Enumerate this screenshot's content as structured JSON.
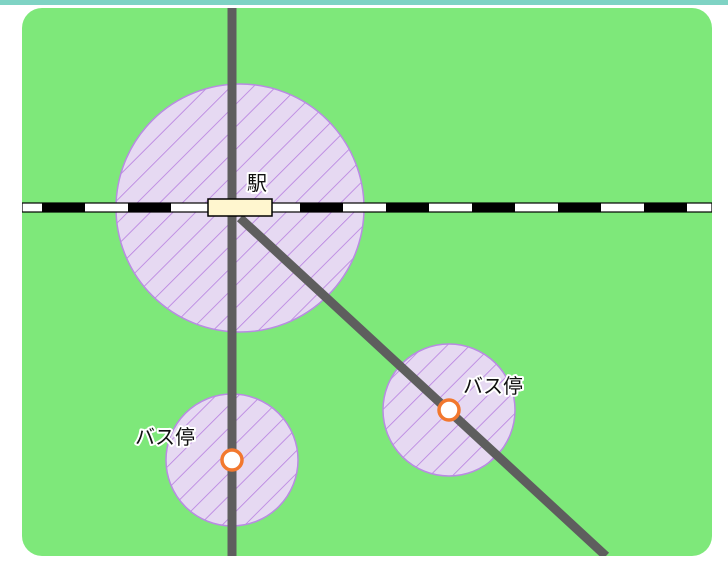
{
  "colors": {
    "ground": "#7ee87a",
    "road": "#5e5e5e",
    "zone_fill": "#e6d9f2",
    "zone_hatch": "#b77fe0",
    "zone_stroke": "#b98be3",
    "rail_black": "#000000",
    "rail_white": "#ffffff",
    "station_fill": "#fff6cf",
    "bus_stop_ring": "#f2782e",
    "top_strip": "#7fd3c4"
  },
  "labels": {
    "station": "駅",
    "bus_stop_1": "バス停",
    "bus_stop_2": "バス停"
  }
}
